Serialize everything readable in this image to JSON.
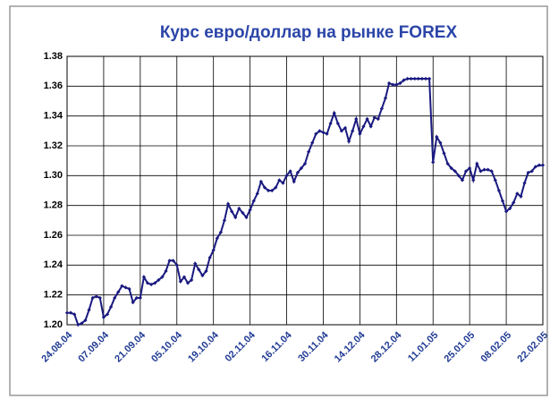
{
  "chart_data": {
    "type": "line",
    "title": "Курс евро/доллар на рынке FOREX",
    "categories": [
      "24.08.04",
      null,
      null,
      null,
      null,
      null,
      null,
      null,
      null,
      null,
      "07.09.04",
      null,
      null,
      null,
      null,
      null,
      null,
      null,
      null,
      null,
      "21.09.04",
      null,
      null,
      null,
      null,
      null,
      null,
      null,
      null,
      null,
      "05.10.04",
      null,
      null,
      null,
      null,
      null,
      null,
      null,
      null,
      null,
      "19.10.04",
      null,
      null,
      null,
      null,
      null,
      null,
      null,
      null,
      null,
      "02.11.04",
      null,
      null,
      null,
      null,
      null,
      null,
      null,
      null,
      null,
      "16.11.04",
      null,
      null,
      null,
      null,
      null,
      null,
      null,
      null,
      null,
      "30.11.04",
      null,
      null,
      null,
      null,
      null,
      null,
      null,
      null,
      null,
      "14.12.04",
      null,
      null,
      null,
      null,
      null,
      null,
      null,
      null,
      null,
      "28.12.04",
      null,
      null,
      null,
      null,
      null,
      null,
      null,
      null,
      null,
      "11.01.05",
      null,
      null,
      null,
      null,
      null,
      null,
      null,
      null,
      null,
      "25.01.05",
      null,
      null,
      null,
      null,
      null,
      null,
      null,
      null,
      null,
      "08.02.05",
      null,
      null,
      null,
      null,
      null,
      null,
      null,
      null,
      null,
      "22.02.05"
    ],
    "series": [
      {
        "color": "#1a1a80",
        "values": [
          1.208,
          1.208,
          1.207,
          1.2,
          1.201,
          1.203,
          1.21,
          1.218,
          1.219,
          1.218,
          1.205,
          1.207,
          1.212,
          1.218,
          1.222,
          1.226,
          1.225,
          1.224,
          1.215,
          1.218,
          1.218,
          1.232,
          1.228,
          1.227,
          1.228,
          1.23,
          1.232,
          1.236,
          1.243,
          1.243,
          1.24,
          1.229,
          1.232,
          1.228,
          1.23,
          1.241,
          1.237,
          1.233,
          1.236,
          1.245,
          1.25,
          1.258,
          1.262,
          1.27,
          1.281,
          1.276,
          1.272,
          1.278,
          1.275,
          1.272,
          1.277,
          1.283,
          1.288,
          1.296,
          1.292,
          1.29,
          1.29,
          1.292,
          1.297,
          1.295,
          1.3,
          1.303,
          1.296,
          1.302,
          1.305,
          1.308,
          1.316,
          1.322,
          1.328,
          1.33,
          1.329,
          1.328,
          1.335,
          1.342,
          1.335,
          1.33,
          1.332,
          1.323,
          1.33,
          1.338,
          1.328,
          1.333,
          1.338,
          1.333,
          1.339,
          1.338,
          1.345,
          1.352,
          1.362,
          1.361,
          1.361,
          1.362,
          1.364,
          1.365,
          1.365,
          1.365,
          1.365,
          1.365,
          1.365,
          1.365,
          1.309,
          1.326,
          1.322,
          1.315,
          1.308,
          1.305,
          1.303,
          1.3,
          1.297,
          1.303,
          1.305,
          1.297,
          1.308,
          1.303,
          1.304,
          1.304,
          1.303,
          1.297,
          1.29,
          1.283,
          1.276,
          1.278,
          1.282,
          1.288,
          1.286,
          1.295,
          1.302,
          1.303,
          1.306,
          1.307,
          1.307
        ]
      }
    ],
    "ylim": [
      1.2,
      1.38
    ],
    "yticks": [
      {
        "value": 1.2,
        "label": "1.20"
      },
      1.22,
      1.24,
      1.26,
      1.28,
      {
        "value": 1.3,
        "label": "1.30"
      },
      1.32,
      1.34,
      1.36,
      1.38
    ],
    "grid": true
  }
}
